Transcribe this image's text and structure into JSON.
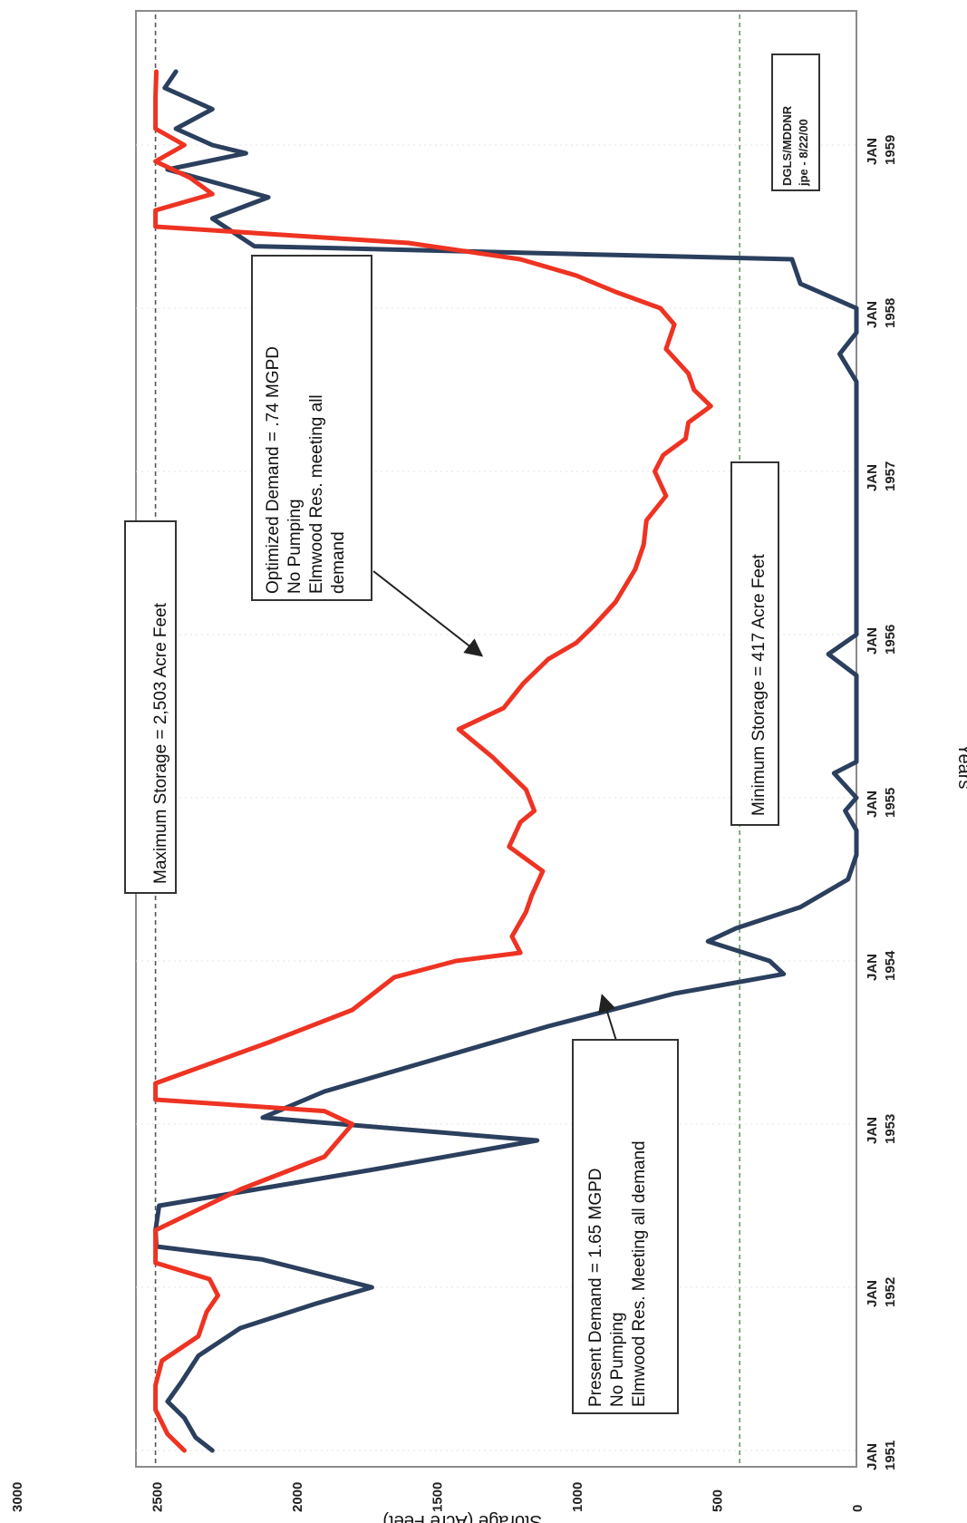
{
  "chart_data": {
    "type": "line",
    "orientation": "rotated-90-ccw",
    "xlabel": "Years",
    "ylabel": "Storage (Acre Feet)",
    "ylim": [
      0,
      3000
    ],
    "xlim": [
      1951.0,
      1959.5
    ],
    "y_ticks": [
      {
        "value": 0,
        "label": "0"
      },
      {
        "value": 500,
        "label": "500"
      },
      {
        "value": 1000,
        "label": "1000"
      },
      {
        "value": 1500,
        "label": "1500"
      },
      {
        "value": 2000,
        "label": "2000"
      },
      {
        "value": 2500,
        "label": "2500"
      },
      {
        "value": 3000,
        "label": "3000"
      }
    ],
    "x_ticks": [
      {
        "value": 1951,
        "label": [
          "JAN",
          "1951"
        ]
      },
      {
        "value": 1952,
        "label": [
          "JAN",
          "1952"
        ]
      },
      {
        "value": 1953,
        "label": [
          "JAN",
          "1953"
        ]
      },
      {
        "value": 1954,
        "label": [
          "JAN",
          "1954"
        ]
      },
      {
        "value": 1955,
        "label": [
          "JAN",
          "1955"
        ]
      },
      {
        "value": 1956,
        "label": [
          "JAN",
          "1956"
        ]
      },
      {
        "value": 1957,
        "label": [
          "JAN",
          "1957"
        ]
      },
      {
        "value": 1958,
        "label": [
          "JAN",
          "1958"
        ]
      },
      {
        "value": 1959,
        "label": [
          "JAN",
          "1959"
        ]
      }
    ],
    "reference_lines": [
      {
        "name": "maximum",
        "value": 2503,
        "color": "#555555"
      },
      {
        "name": "minimum",
        "value": 417,
        "color": "#6a9a6a"
      }
    ],
    "series": [
      {
        "key": "present",
        "color": "#2b3f5e",
        "points": [
          [
            1951.0,
            2300
          ],
          [
            1951.08,
            2360
          ],
          [
            1951.2,
            2400
          ],
          [
            1951.3,
            2460
          ],
          [
            1951.42,
            2410
          ],
          [
            1951.58,
            2350
          ],
          [
            1951.75,
            2200
          ],
          [
            1951.9,
            1930
          ],
          [
            1952.0,
            1730
          ],
          [
            1952.17,
            2120
          ],
          [
            1952.25,
            2500
          ],
          [
            1952.35,
            2503
          ],
          [
            1952.5,
            2490
          ],
          [
            1952.72,
            1730
          ],
          [
            1952.9,
            1140
          ],
          [
            1953.04,
            2120
          ],
          [
            1953.2,
            1900
          ],
          [
            1953.4,
            1500
          ],
          [
            1953.6,
            1100
          ],
          [
            1953.8,
            650
          ],
          [
            1953.92,
            260
          ],
          [
            1954.0,
            310
          ],
          [
            1954.12,
            530
          ],
          [
            1954.2,
            430
          ],
          [
            1954.33,
            200
          ],
          [
            1954.5,
            30
          ],
          [
            1954.65,
            0
          ],
          [
            1954.8,
            0
          ],
          [
            1954.92,
            40
          ],
          [
            1955.0,
            0
          ],
          [
            1955.15,
            80
          ],
          [
            1955.22,
            0
          ],
          [
            1955.4,
            0
          ],
          [
            1955.75,
            0
          ],
          [
            1955.88,
            100
          ],
          [
            1956.0,
            0
          ],
          [
            1956.4,
            0
          ],
          [
            1956.7,
            0
          ],
          [
            1957.0,
            0
          ],
          [
            1957.55,
            0
          ],
          [
            1957.72,
            60
          ],
          [
            1957.85,
            0
          ],
          [
            1958.0,
            0
          ],
          [
            1958.15,
            200
          ],
          [
            1958.3,
            230
          ],
          [
            1958.38,
            2150
          ],
          [
            1958.55,
            2300
          ],
          [
            1958.68,
            2100
          ],
          [
            1958.85,
            2460
          ],
          [
            1958.95,
            2180
          ],
          [
            1959.0,
            2300
          ],
          [
            1959.1,
            2430
          ],
          [
            1959.22,
            2300
          ],
          [
            1959.35,
            2470
          ],
          [
            1959.45,
            2430
          ]
        ]
      },
      {
        "key": "optimized",
        "color": "#ee3322",
        "points": [
          [
            1951.0,
            2400
          ],
          [
            1951.1,
            2460
          ],
          [
            1951.25,
            2503
          ],
          [
            1951.4,
            2503
          ],
          [
            1951.55,
            2480
          ],
          [
            1951.7,
            2350
          ],
          [
            1951.85,
            2320
          ],
          [
            1951.95,
            2280
          ],
          [
            1952.05,
            2310
          ],
          [
            1952.15,
            2503
          ],
          [
            1952.35,
            2503
          ],
          [
            1952.6,
            2200
          ],
          [
            1952.8,
            1900
          ],
          [
            1953.0,
            1800
          ],
          [
            1953.08,
            1900
          ],
          [
            1953.15,
            2503
          ],
          [
            1953.25,
            2503
          ],
          [
            1953.5,
            2100
          ],
          [
            1953.7,
            1800
          ],
          [
            1953.9,
            1650
          ],
          [
            1954.0,
            1430
          ],
          [
            1954.05,
            1200
          ],
          [
            1954.15,
            1230
          ],
          [
            1954.3,
            1180
          ],
          [
            1954.4,
            1160
          ],
          [
            1954.55,
            1120
          ],
          [
            1954.7,
            1240
          ],
          [
            1954.85,
            1200
          ],
          [
            1954.92,
            1150
          ],
          [
            1955.05,
            1180
          ],
          [
            1955.25,
            1300
          ],
          [
            1955.42,
            1420
          ],
          [
            1955.55,
            1260
          ],
          [
            1955.7,
            1190
          ],
          [
            1955.85,
            1100
          ],
          [
            1955.95,
            1000
          ],
          [
            1956.05,
            940
          ],
          [
            1956.2,
            860
          ],
          [
            1956.4,
            790
          ],
          [
            1956.55,
            760
          ],
          [
            1956.7,
            750
          ],
          [
            1956.85,
            680
          ],
          [
            1957.0,
            720
          ],
          [
            1957.1,
            690
          ],
          [
            1957.2,
            610
          ],
          [
            1957.3,
            600
          ],
          [
            1957.4,
            520
          ],
          [
            1957.5,
            580
          ],
          [
            1957.6,
            600
          ],
          [
            1957.75,
            680
          ],
          [
            1957.9,
            650
          ],
          [
            1958.0,
            700
          ],
          [
            1958.1,
            860
          ],
          [
            1958.2,
            1000
          ],
          [
            1958.3,
            1200
          ],
          [
            1958.4,
            1600
          ],
          [
            1958.5,
            2503
          ],
          [
            1958.6,
            2503
          ],
          [
            1958.7,
            2300
          ],
          [
            1958.8,
            2380
          ],
          [
            1958.9,
            2503
          ],
          [
            1959.0,
            2400
          ],
          [
            1959.1,
            2503
          ],
          [
            1959.3,
            2503
          ],
          [
            1959.45,
            2500
          ]
        ]
      }
    ],
    "annotations": [
      {
        "key": "max",
        "lines": [
          "Maximum Storage = 2,503 Acre Feet"
        ]
      },
      {
        "key": "optimized",
        "lines": [
          "Optimized Demand = .74 MGPD",
          "No Pumping",
          "Elmwood Res. meeting all",
          "demand"
        ]
      },
      {
        "key": "minimum",
        "lines": [
          "Minimum Storage = 417 Acre Feet"
        ]
      },
      {
        "key": "present",
        "lines": [
          "Present Demand = 1.65 MGPD",
          "No Pumping",
          "Elmwood Res. Meeting all demand"
        ]
      },
      {
        "key": "stamp",
        "lines": [
          "DGLS/MDDNR",
          "jpe - 8/22/00"
        ]
      }
    ]
  }
}
